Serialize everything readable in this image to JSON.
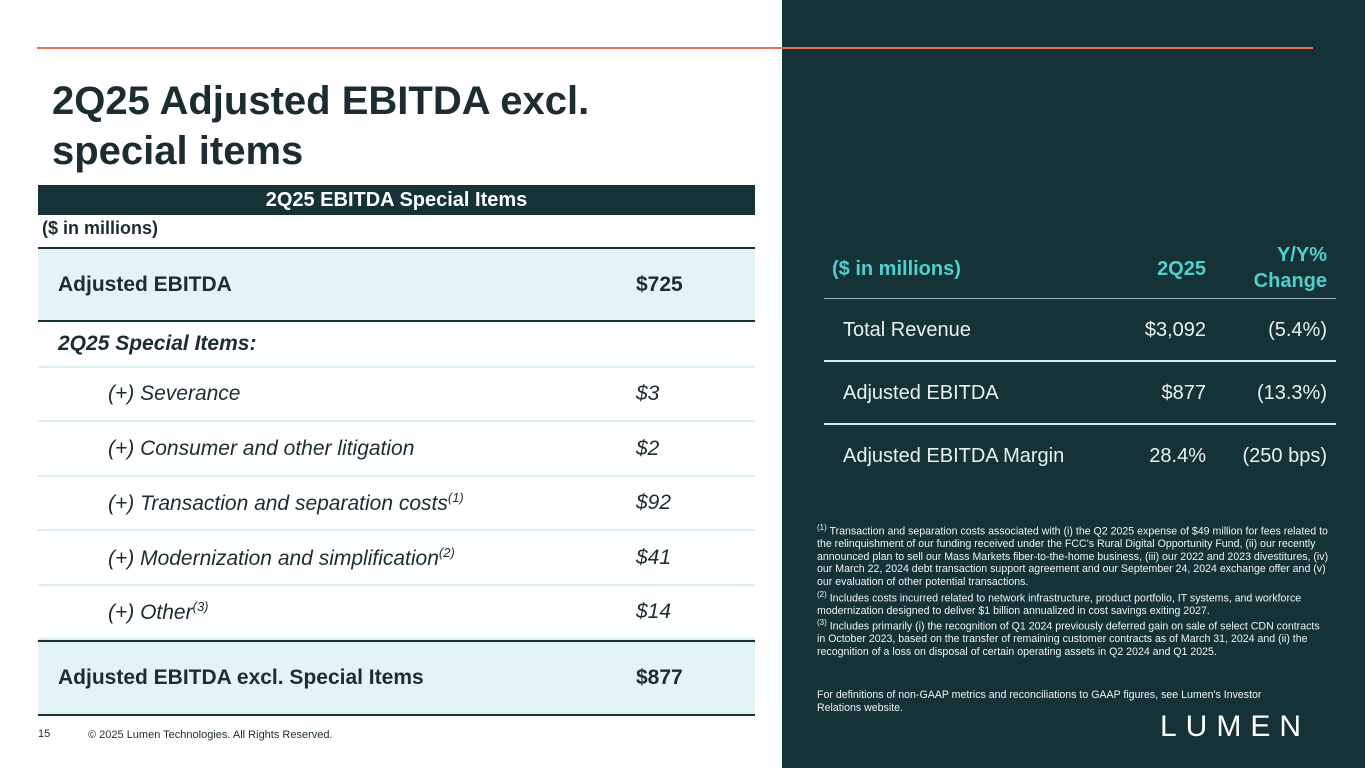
{
  "header": {
    "title": "2Q25 Adjusted EBITDA excl. special items"
  },
  "left_table": {
    "title": "2Q25 EBITDA Special Items",
    "unit": "($ in millions)",
    "rows": [
      {
        "label": "Adjusted EBITDA",
        "value": "$725"
      },
      {
        "label": "2Q25 Special Items:"
      },
      {
        "label": "(+) Severance",
        "value": "$3"
      },
      {
        "label": "(+) Consumer and other litigation",
        "value": "$2"
      },
      {
        "label": "(+) Transaction and separation costs",
        "note": "(1)",
        "value": "$92"
      },
      {
        "label": "(+) Modernization and simplification",
        "note": "(2)",
        "value": "$41"
      },
      {
        "label": "(+) Other",
        "note": "(3)",
        "value": "$14"
      },
      {
        "label": "Adjusted EBITDA excl. Special Items",
        "value": "$877"
      }
    ]
  },
  "right_table": {
    "columns": [
      "($ in millions)",
      "2Q25",
      "Y/Y% Change"
    ],
    "rows": [
      [
        "Total Revenue",
        "$3,092",
        "(5.4%)"
      ],
      [
        "Adjusted EBITDA",
        "$877",
        "(13.3%)"
      ],
      [
        "Adjusted EBITDA Margin",
        "28.4%",
        "(250 bps)"
      ]
    ]
  },
  "footnotes": [
    {
      "marker": "(1)",
      "text": "Transaction and separation costs associated with (i) the Q2 2025 expense of $49 million for fees related to the relinquishment of our funding received under the FCC's Rural Digital Opportunity Fund, (ii) our recently announced plan to sell our Mass Markets fiber-to-the-home business, (iii) our 2022 and 2023 divestitures, (iv) our March 22, 2024 debt transaction support agreement and our September 24, 2024 exchange offer and (v) our evaluation of other potential transactions."
    },
    {
      "marker": "(2)",
      "text": "Includes costs incurred related to network infrastructure, product portfolio, IT systems, and workforce modernization designed to deliver $1 billion annualized in cost savings exiting 2027."
    },
    {
      "marker": "(3)",
      "text": "Includes primarily (i) the recognition of Q1 2024 previously deferred gain on sale of select CDN contracts in October 2023, based on the transfer of remaining customer contracts as of March 31, 2024 and (ii) the recognition of a loss on disposal of certain operating assets in Q2 2024 and Q1 2025."
    }
  ],
  "definitions": "For definitions of non-GAAP metrics and reconciliations to GAAP figures, see Lumen's Investor Relations website.",
  "footer": {
    "page": "15",
    "copyright": "© 2025 Lumen Technologies. All Rights Reserved.",
    "logo": "LUMEN"
  }
}
